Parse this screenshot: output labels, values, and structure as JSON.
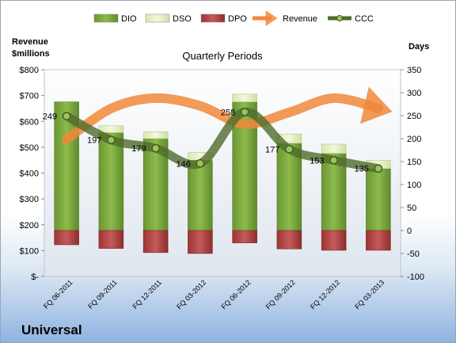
{
  "chart_data": {
    "type": "bar",
    "title": "Quarterly Periods",
    "company": "Universal",
    "left_axis": {
      "label_line1": "Revenue",
      "label_line2": "$millions",
      "range": [
        0,
        800
      ],
      "ticks": [
        "$-",
        "$100",
        "$200",
        "$300",
        "$400",
        "$500",
        "$600",
        "$700",
        "$800"
      ]
    },
    "right_axis": {
      "label": "Days",
      "range": [
        -100,
        350
      ],
      "ticks": [
        "-100",
        "-50",
        "0",
        "50",
        "100",
        "150",
        "200",
        "250",
        "300",
        "350"
      ]
    },
    "categories": [
      "FQ 06-2011",
      "FQ 09-2011",
      "FQ 12-2011",
      "FQ 03-2012",
      "FQ 06-2012",
      "FQ 09-2012",
      "FQ 12-2012",
      "FQ 03-2013"
    ],
    "legend": [
      {
        "name": "DIO",
        "kind": "bar",
        "color": "#7fa943"
      },
      {
        "name": "DSO",
        "kind": "bar",
        "color": "#e8f2c8"
      },
      {
        "name": "DPO",
        "kind": "bar",
        "color": "#b84a4a"
      },
      {
        "name": "Revenue",
        "kind": "arrow",
        "color": "#f0883a"
      },
      {
        "name": "CCC",
        "kind": "line",
        "color": "#4f6b2c"
      }
    ],
    "series": [
      {
        "name": "DIO",
        "axis": "right",
        "values": [
          280,
          213,
          200,
          153,
          280,
          190,
          168,
          135
        ]
      },
      {
        "name": "DSO",
        "axis": "right",
        "values": [
          0,
          15,
          15,
          17,
          17,
          20,
          20,
          18
        ]
      },
      {
        "name": "DPO",
        "axis": "right",
        "values": [
          -31,
          -39,
          -48,
          -50,
          -27,
          -40,
          -43,
          -43
        ]
      },
      {
        "name": "Revenue",
        "axis": "left",
        "values": [
          530,
          650,
          690,
          660,
          590,
          635,
          690,
          650
        ]
      },
      {
        "name": "CCC",
        "axis": "right",
        "values": [
          249,
          197,
          179,
          146,
          258,
          177,
          153,
          135
        ]
      }
    ],
    "ccc_labels": [
      "249",
      "197",
      "179",
      "146",
      "258",
      "177",
      "153",
      "135"
    ]
  }
}
